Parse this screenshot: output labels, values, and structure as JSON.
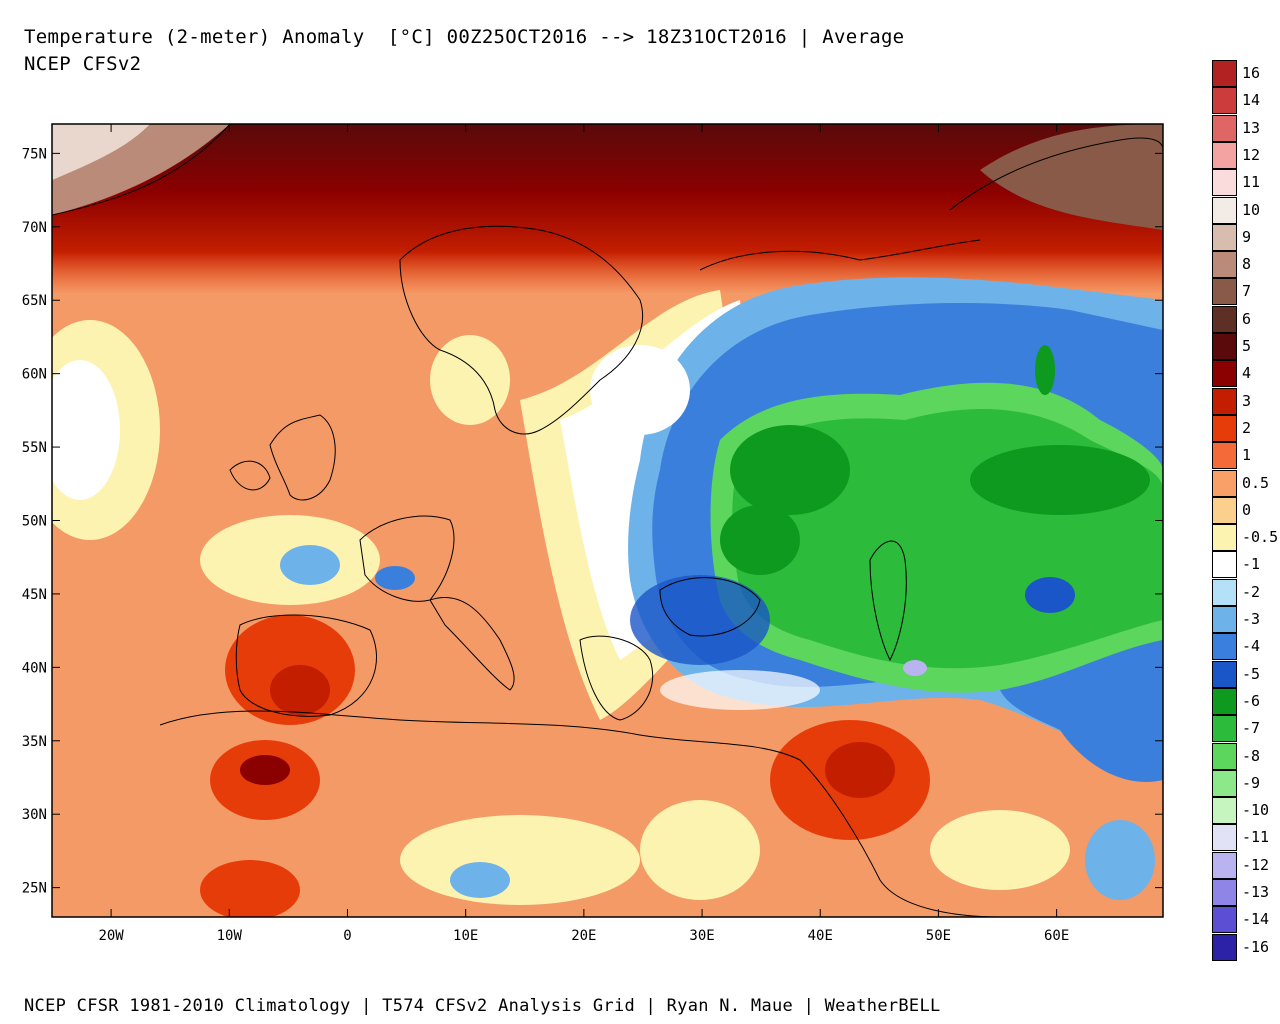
{
  "header": {
    "title": "Temperature (2-meter) Anomaly  [°C] 00Z25OCT2016 --> 18Z31OCT2016 | Average",
    "subtitle": "NCEP CFSv2"
  },
  "footer": {
    "text": "NCEP CFSR 1981-2010 Climatology | T574 CFSv2 Analysis Grid | Ryan N. Maue | WeatherBELL"
  },
  "map": {
    "lat_labels": [
      "75N",
      "70N",
      "65N",
      "60N",
      "55N",
      "50N",
      "45N",
      "40N",
      "35N",
      "30N",
      "25N"
    ],
    "lon_labels": [
      "20W",
      "10W",
      "0",
      "10E",
      "20E",
      "30E",
      "40E",
      "50E",
      "60E"
    ],
    "extent": {
      "lon_min": -25,
      "lon_max": 69,
      "lat_min": 23,
      "lat_max": 77
    }
  },
  "colorbar": {
    "entries": [
      {
        "label": "16",
        "color": "#b22222"
      },
      {
        "label": "14",
        "color": "#cd3c3c"
      },
      {
        "label": "13",
        "color": "#e06666"
      },
      {
        "label": "12",
        "color": "#f4a3a3"
      },
      {
        "label": "11",
        "color": "#fbdcdc"
      },
      {
        "label": "10",
        "color": "#f3ece6"
      },
      {
        "label": "9",
        "color": "#d8bcae"
      },
      {
        "label": "8",
        "color": "#b98b78"
      },
      {
        "label": "7",
        "color": "#8a5a48"
      },
      {
        "label": "6",
        "color": "#5e2f24"
      },
      {
        "label": "5",
        "color": "#5a0a0a"
      },
      {
        "label": "4",
        "color": "#8b0000"
      },
      {
        "label": "3",
        "color": "#c31e00"
      },
      {
        "label": "2",
        "color": "#e63c0a"
      },
      {
        "label": "1",
        "color": "#f46a38"
      },
      {
        "label": "0.5",
        "color": "#f9a068"
      },
      {
        "label": "0",
        "color": "#fbd08c"
      },
      {
        "label": "-0.5",
        "color": "#fdf3b0"
      },
      {
        "label": "-1",
        "color": "#ffffff"
      },
      {
        "label": "-2",
        "color": "#b4e1f7"
      },
      {
        "label": "-3",
        "color": "#6eb2ea"
      },
      {
        "label": "-4",
        "color": "#3b7fdc"
      },
      {
        "label": "-5",
        "color": "#1a56c8"
      },
      {
        "label": "-6",
        "color": "#0d9a1f"
      },
      {
        "label": "-7",
        "color": "#2cbb3a"
      },
      {
        "label": "-8",
        "color": "#5cd65c"
      },
      {
        "label": "-9",
        "color": "#8de88a"
      },
      {
        "label": "-10",
        "color": "#c6f5c0"
      },
      {
        "label": "-11",
        "color": "#e2e2f6"
      },
      {
        "label": "-12",
        "color": "#b9b4ef"
      },
      {
        "label": "-13",
        "color": "#8e85e6"
      },
      {
        "label": "-14",
        "color": "#5d4fd3"
      },
      {
        "label": "-16",
        "color": "#2b22a8"
      }
    ]
  }
}
